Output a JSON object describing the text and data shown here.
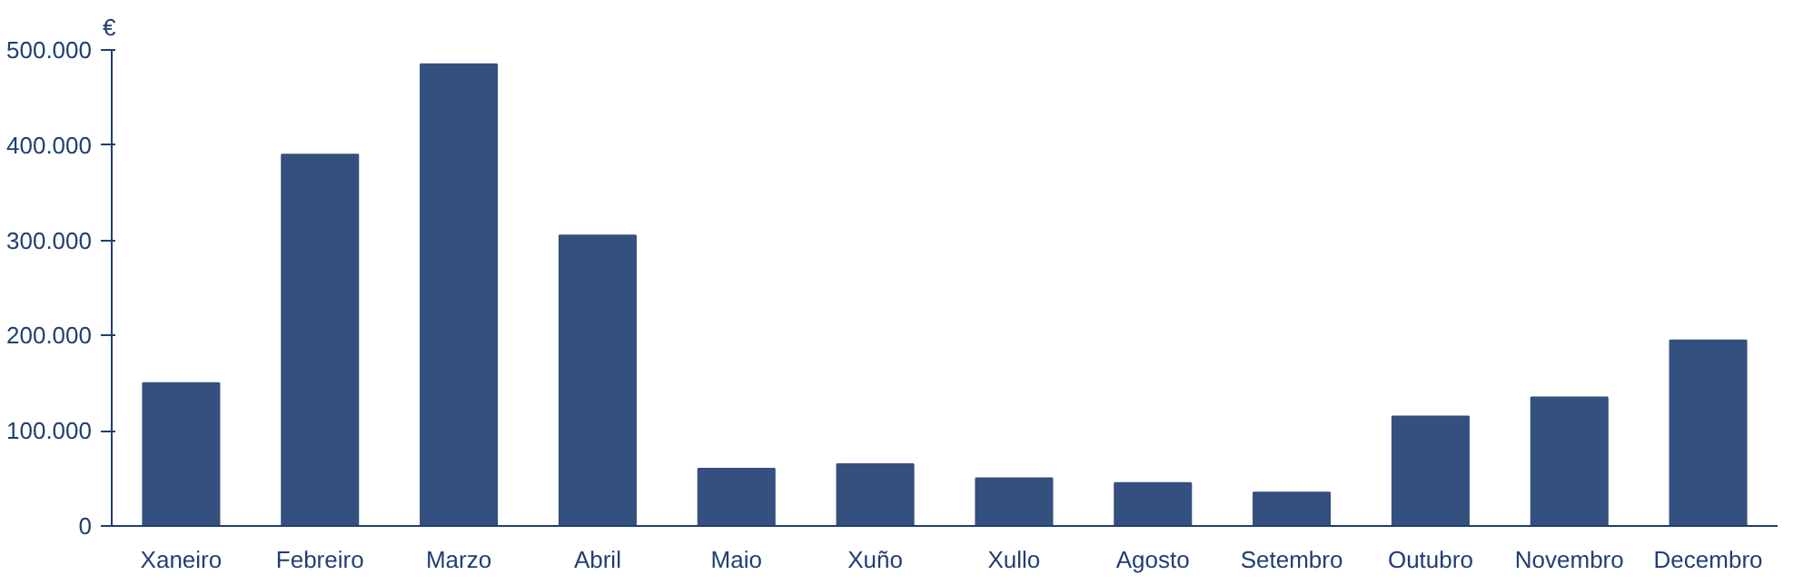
{
  "chart_data": {
    "type": "bar",
    "ylabel": "€",
    "categories": [
      "Xaneiro",
      "Febreiro",
      "Marzo",
      "Abril",
      "Maio",
      "Xuño",
      "Xullo",
      "Agosto",
      "Setembro",
      "Outubro",
      "Novembro",
      "Decembro"
    ],
    "values": [
      150000,
      390000,
      485000,
      305000,
      60000,
      65000,
      50000,
      45000,
      35000,
      115000,
      135000,
      195000
    ],
    "color": "#34507e",
    "ylim": [
      0,
      500000
    ],
    "yticks": [
      0,
      {
        "value": 100000,
        "label": "100.000"
      },
      {
        "value": 200000,
        "label": "200.000"
      },
      {
        "value": 300000,
        "label": "300.000"
      },
      {
        "value": 400000,
        "label": "400.000"
      },
      {
        "value": 500000,
        "label": "500.000"
      }
    ],
    "grid": false
  }
}
